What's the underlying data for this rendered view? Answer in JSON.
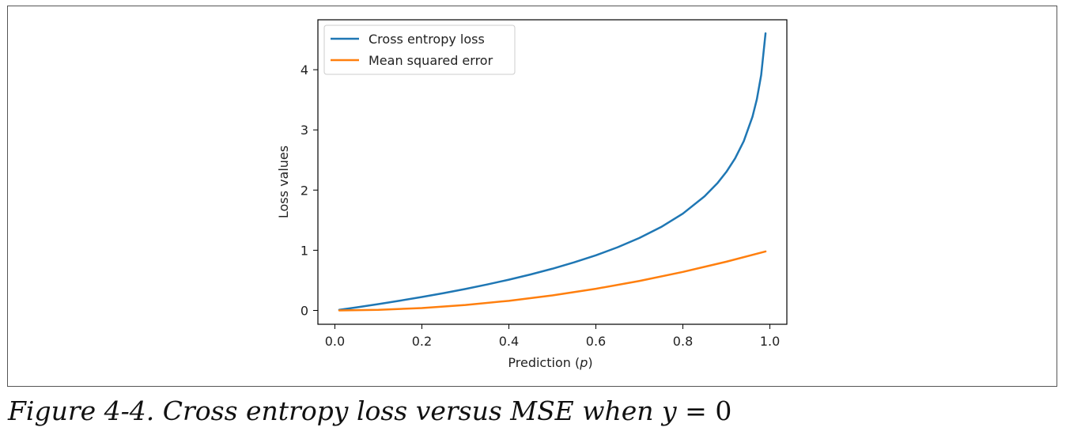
{
  "chart_data": {
    "type": "line",
    "xlabel_prefix": "Prediction (",
    "xlabel_var": "p",
    "xlabel_suffix": ")",
    "ylabel": "Loss values",
    "xlim": [
      -0.039,
      1.039
    ],
    "ylim": [
      -0.23,
      4.83
    ],
    "xticks": [
      0.0,
      0.2,
      0.4,
      0.6,
      0.8,
      1.0
    ],
    "xtick_labels": [
      "0.0",
      "0.2",
      "0.4",
      "0.6",
      "0.8",
      "1.0"
    ],
    "yticks": [
      0,
      1,
      2,
      3,
      4
    ],
    "ytick_labels": [
      "0",
      "1",
      "2",
      "3",
      "4"
    ],
    "legend_position": "top-left",
    "grid": false,
    "series": [
      {
        "name": "Cross entropy loss",
        "color": "#1f77b4",
        "x": [
          0.01,
          0.05,
          0.1,
          0.15,
          0.2,
          0.25,
          0.3,
          0.35,
          0.4,
          0.45,
          0.5,
          0.55,
          0.6,
          0.65,
          0.7,
          0.75,
          0.8,
          0.85,
          0.88,
          0.9,
          0.92,
          0.94,
          0.96,
          0.97,
          0.98,
          0.99
        ],
        "y": [
          0.01,
          0.051,
          0.105,
          0.163,
          0.223,
          0.288,
          0.357,
          0.431,
          0.511,
          0.598,
          0.693,
          0.799,
          0.916,
          1.05,
          1.204,
          1.386,
          1.609,
          1.897,
          2.12,
          2.303,
          2.526,
          2.813,
          3.219,
          3.507,
          3.912,
          4.605
        ]
      },
      {
        "name": "Mean squared error",
        "color": "#ff7f0e",
        "x": [
          0.01,
          0.1,
          0.2,
          0.3,
          0.4,
          0.5,
          0.6,
          0.7,
          0.8,
          0.9,
          0.99
        ],
        "y": [
          0.0001,
          0.01,
          0.04,
          0.09,
          0.16,
          0.25,
          0.36,
          0.49,
          0.64,
          0.81,
          0.98
        ]
      }
    ]
  },
  "caption": {
    "label": "Figure 4-4. Cross entropy loss versus MSE when ",
    "var": "y",
    "equals": " = 0"
  }
}
